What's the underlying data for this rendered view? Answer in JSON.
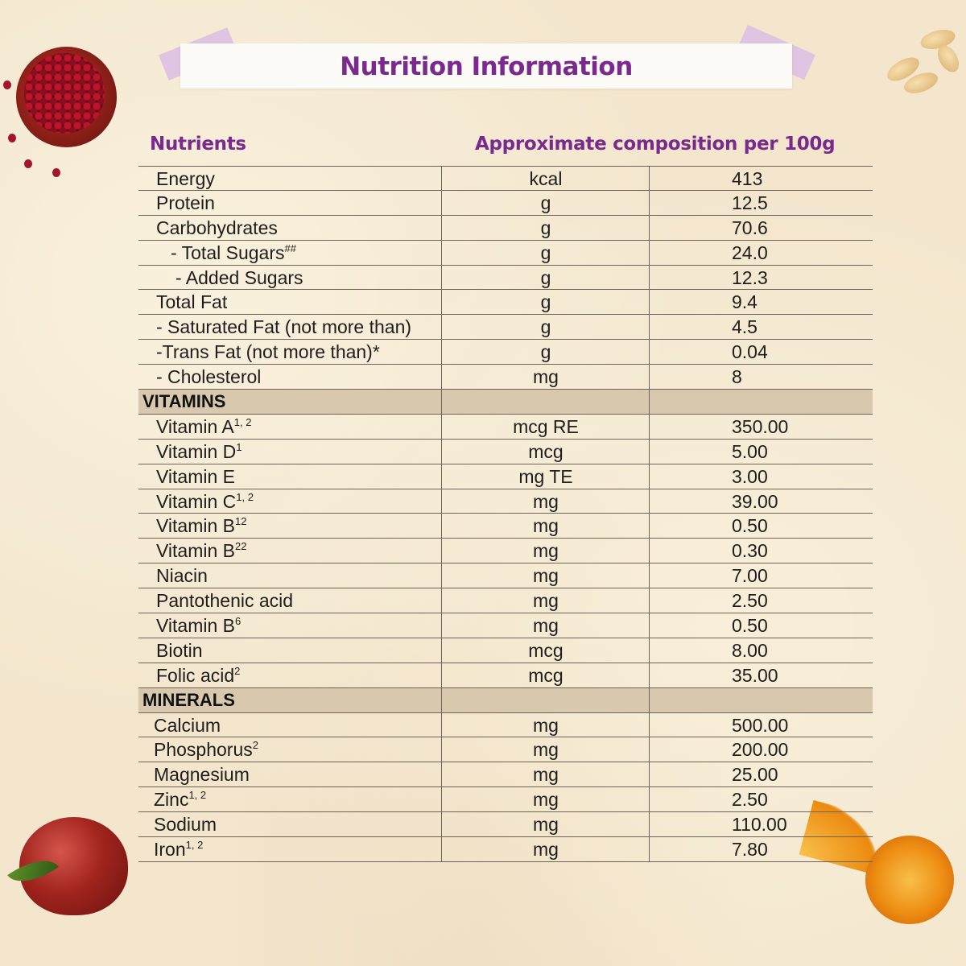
{
  "title": "Nutrition Information",
  "header": {
    "nutrients": "Nutrients",
    "composition": "Approximate composition per 100g"
  },
  "rows": [
    {
      "type": "item",
      "name": "Energy",
      "unit": "kcal",
      "value": "413",
      "indent": 22
    },
    {
      "type": "item",
      "name": "Protein",
      "unit": "g",
      "value": "12.5",
      "indent": 22
    },
    {
      "type": "item",
      "name": "Carbohydrates",
      "unit": "g",
      "value": "70.6",
      "indent": 22
    },
    {
      "type": "item",
      "name": "- Total Sugars",
      "sup": "##",
      "unit": "g",
      "value": "24.0",
      "indent": 40
    },
    {
      "type": "item",
      "name": "- Added Sugars",
      "unit": "g",
      "value": "12.3",
      "indent": 46
    },
    {
      "type": "item",
      "name": "Total Fat",
      "unit": "g",
      "value": "9.4",
      "indent": 22
    },
    {
      "type": "item",
      "name": "- Saturated Fat (not more than)",
      "unit": "g",
      "value": "4.5",
      "indent": 22
    },
    {
      "type": "item",
      "name": "-Trans Fat (not more than)*",
      "unit": "g",
      "value": "0.04",
      "indent": 22
    },
    {
      "type": "item",
      "name": "- Cholesterol",
      "unit": "mg",
      "value": "8",
      "indent": 22
    },
    {
      "type": "section",
      "name": "VITAMINS"
    },
    {
      "type": "item",
      "name": "Vitamin A",
      "sup": "1, 2",
      "unit": "mcg RE",
      "value": "350.00",
      "indent": 22
    },
    {
      "type": "item",
      "name": "Vitamin D",
      "sup": "1",
      "unit": "mcg",
      "value": "5.00",
      "indent": 22
    },
    {
      "type": "item",
      "name": "Vitamin E",
      "unit": "mg TE",
      "value": "3.00",
      "indent": 22
    },
    {
      "type": "item",
      "name": "Vitamin C",
      "sup": "1, 2",
      "unit": "mg",
      "value": "39.00",
      "indent": 22
    },
    {
      "type": "item",
      "name": "Vitamin B",
      "sup": "12",
      "unit": "mg",
      "value": "0.50",
      "indent": 22
    },
    {
      "type": "item",
      "name": "Vitamin B",
      "sup": "22",
      "unit": "mg",
      "value": "0.30",
      "indent": 22
    },
    {
      "type": "item",
      "name": "Niacin",
      "unit": "mg",
      "value": "7.00",
      "indent": 22
    },
    {
      "type": "item",
      "name": "Pantothenic acid",
      "unit": "mg",
      "value": "2.50",
      "indent": 22
    },
    {
      "type": "item",
      "name": "Vitamin B",
      "sup": "6",
      "unit": "mg",
      "value": "0.50",
      "indent": 22
    },
    {
      "type": "item",
      "name": "Biotin",
      "unit": "mcg",
      "value": "8.00",
      "indent": 22
    },
    {
      "type": "item",
      "name": "Folic acid",
      "sup": "2",
      "unit": "mcg",
      "value": "35.00",
      "indent": 22
    },
    {
      "type": "section",
      "name": "MINERALS"
    },
    {
      "type": "item",
      "name": "Calcium",
      "unit": "mg",
      "value": "500.00",
      "indent": 19
    },
    {
      "type": "item",
      "name": "Phosphorus",
      "sup": "2",
      "unit": "mg",
      "value": "200.00",
      "indent": 19
    },
    {
      "type": "item",
      "name": "Magnesium",
      "unit": "mg",
      "value": "25.00",
      "indent": 19
    },
    {
      "type": "item",
      "name": "Zinc",
      "sup": "1, 2",
      "unit": "mg",
      "value": "2.50",
      "indent": 19
    },
    {
      "type": "item",
      "name": "Sodium",
      "unit": "mg",
      "value": "110.00",
      "indent": 19
    },
    {
      "type": "item",
      "name": "Iron",
      "sup": "1, 2",
      "unit": "mg",
      "value": "7.80",
      "indent": 19
    }
  ],
  "decorations": [
    "pomegranate",
    "almonds",
    "apple",
    "orange"
  ],
  "colors": {
    "title": "#7a2a8c",
    "section_bg": "#d8c8ae",
    "rule": "#6d6358",
    "background": "#f3e6cd"
  }
}
